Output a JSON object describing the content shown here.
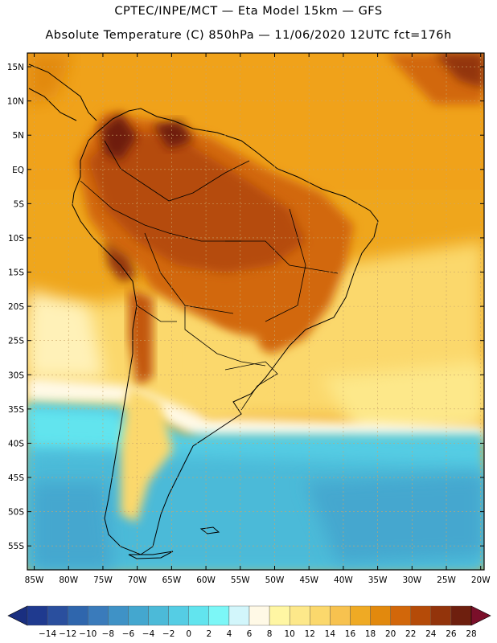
{
  "header": {
    "line1": "CPTEC/INPE/MCT —  Eta Model 15km — GFS",
    "line2": "Absolute Temperature (C) 850hPa — 11/06/2020 12UTC fct=176h"
  },
  "map": {
    "lat_labels": [
      "15N",
      "10N",
      "5N",
      "EQ",
      "5S",
      "10S",
      "15S",
      "20S",
      "25S",
      "30S",
      "35S",
      "40S",
      "45S",
      "50S",
      "55S"
    ],
    "lon_labels": [
      "85W",
      "80W",
      "75W",
      "70W",
      "65W",
      "60W",
      "55W",
      "50W",
      "45W",
      "40W",
      "35W",
      "30W",
      "25W",
      "20W"
    ]
  },
  "legend": {
    "labels": [
      "-14",
      "-12",
      "-10",
      "-8",
      "-6",
      "-4",
      "-2",
      "0",
      "2",
      "4",
      "6",
      "8",
      "10",
      "12",
      "14",
      "16",
      "18",
      "20",
      "22",
      "24",
      "26",
      "28"
    ],
    "colors": [
      "#1f3a8f",
      "#2a4f9e",
      "#2f66ad",
      "#3a7bbb",
      "#3f92c6",
      "#44a7cf",
      "#4cbad8",
      "#55cde4",
      "#62e4ee",
      "#7cf7f7",
      "#d2f6fb",
      "#fff9e6",
      "#fff6a3",
      "#fde88a",
      "#fbd86c",
      "#f7c24f",
      "#efaa24",
      "#e2890d",
      "#d2670a",
      "#b54b08",
      "#93340b",
      "#6e1f0e"
    ],
    "low_color": "#1a2f80",
    "high_color": "#7a0f2a"
  },
  "colors": {
    "field_warm": "#ef9f14",
    "field_hot": "#c2560c",
    "field_cold_sea": "#4cbad8"
  }
}
